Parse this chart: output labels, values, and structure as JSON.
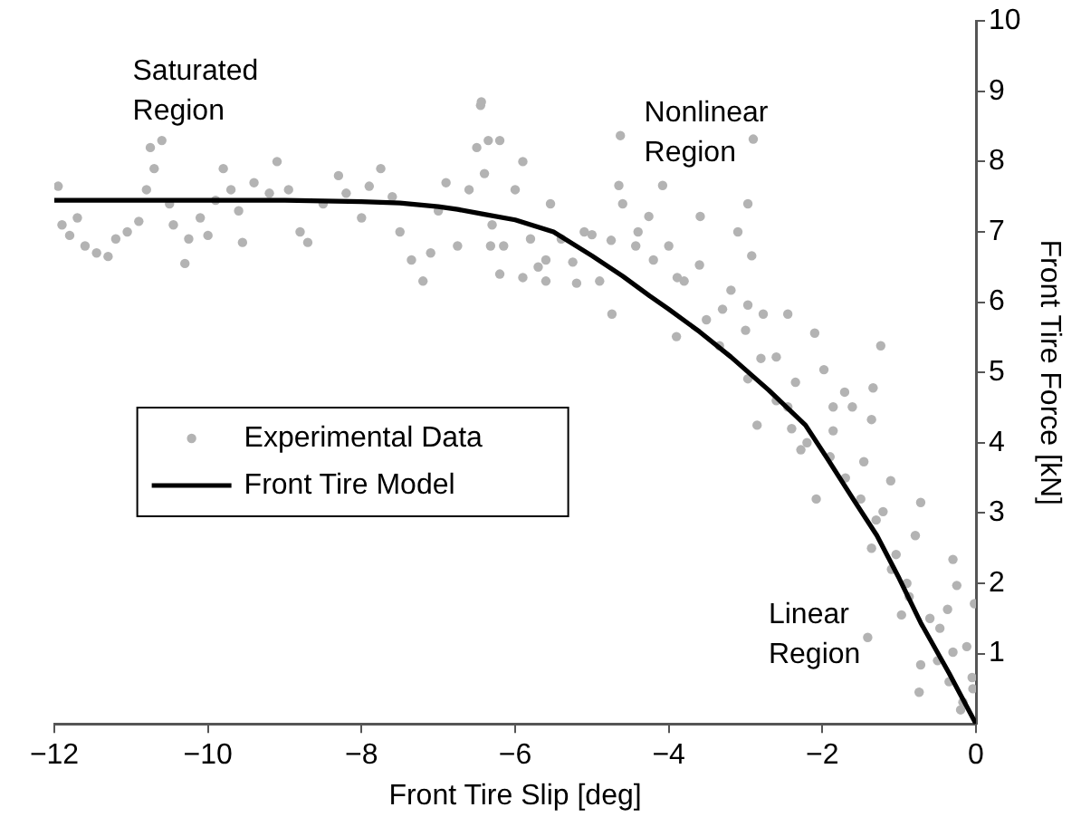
{
  "chart_data": {
    "type": "scatter",
    "xlabel": "Front Tire Slip [deg]",
    "ylabel": "Front Tire Force [kN]",
    "xlim": [
      -12,
      0
    ],
    "xticks": [
      {
        "value": -12,
        "label": "−12"
      },
      {
        "value": -10,
        "label": "−10"
      },
      {
        "value": -8,
        "label": "−8"
      },
      {
        "value": -6,
        "label": "−6"
      },
      {
        "value": -4,
        "label": "−4"
      },
      {
        "value": -2,
        "label": "−2"
      },
      0
    ],
    "ylim": [
      0,
      10
    ],
    "yticks": [
      1,
      2,
      3,
      4,
      5,
      6,
      7,
      8,
      9,
      10
    ],
    "grid": false,
    "legend": "center left",
    "marker": "circle",
    "annotations": [
      "Saturated Region",
      "Nonlinear Region",
      "Linear Region"
    ],
    "series": [
      {
        "name": "Experimental Data",
        "color": "#b3b3b3",
        "x": [
          -11.95,
          -11.9,
          -11.8,
          -11.7,
          -11.6,
          -11.45,
          -11.3,
          -11.2,
          -11.05,
          -10.9,
          -10.8,
          -10.75,
          -10.7,
          -10.6,
          -10.5,
          -10.45,
          -10.3,
          -10.25,
          -10.1,
          -10,
          -9.9,
          -9.8,
          -9.7,
          -9.6,
          -9.55,
          -9.4,
          -9.2,
          -9.1,
          -8.95,
          -8.8,
          -8.7,
          -8.5,
          -8.3,
          -8.2,
          -8,
          -7.9,
          -7.75,
          -7.6,
          -7.5,
          -7.35,
          -7.2,
          -7.1,
          -7,
          -6.9,
          -6.75,
          -6.6,
          -6.5,
          -6.45,
          -6.35,
          -6.3,
          -6.2,
          -6.15,
          -6,
          -5.9,
          -5.8,
          -5.7,
          -5.6,
          -6.44,
          -6.2,
          -6.4,
          -6.32,
          -5.9,
          -5.54,
          -5.6,
          -5.25,
          -5.2,
          -5,
          -4.75,
          -4.74,
          -4.63,
          -4.65,
          -4.43,
          -4.26,
          -4.08,
          -4,
          -3.89,
          -3.9,
          -3.59,
          -3.6,
          -3.51,
          -3.34,
          -3.19,
          -3.1,
          -2.97,
          -2.9,
          -2.92,
          -2.97,
          -2.77,
          -2.6,
          -2.45,
          -2.35,
          -2.1,
          -1.98,
          -1.86,
          -1.71,
          -1.34,
          -1.24,
          -2.97,
          -2.85,
          -2.45,
          -2.28,
          -2.08,
          -1.86,
          -1.61,
          -1.46,
          -1.36,
          -1.21,
          -1.11,
          -1.36,
          -1.04,
          -0.79,
          -0.72,
          -0.87,
          -0.97,
          -1.41,
          -0.72,
          -0.74,
          -0.47,
          -0.3,
          -0.25,
          -0.12,
          -0.05,
          -0.02,
          -0.3,
          -0.17,
          -0.04,
          -0.37,
          -2.6,
          -2.4,
          -2.2,
          -1.9,
          -1.7,
          -1.5,
          -1.3,
          -1.1,
          -0.9,
          -0.6,
          -0.5,
          -0.35,
          -0.2,
          -3.3,
          -3,
          -2.8,
          -3.8,
          -4.2,
          -4.4,
          -4.6,
          -5.1,
          -5.4,
          -4.9
        ],
        "values": [
          7.65,
          7.1,
          6.95,
          7.2,
          6.8,
          6.7,
          6.65,
          6.9,
          7,
          7.15,
          7.6,
          8.2,
          7.9,
          8.3,
          7.4,
          7.1,
          6.55,
          6.9,
          7.2,
          6.95,
          7.45,
          7.9,
          7.6,
          7.3,
          6.85,
          7.7,
          7.55,
          8,
          7.6,
          7,
          6.85,
          7.4,
          7.8,
          7.55,
          7.2,
          7.65,
          7.9,
          7.5,
          7,
          6.6,
          6.3,
          6.7,
          7.3,
          7.7,
          6.8,
          7.6,
          8.2,
          8.8,
          8.3,
          7.1,
          6.4,
          6.8,
          7.6,
          8,
          6.9,
          6.5,
          6.3,
          8.85,
          8.3,
          7.83,
          6.8,
          6.35,
          7.4,
          6.6,
          6.57,
          6.27,
          6.96,
          6.88,
          5.83,
          8.37,
          7.66,
          6.8,
          7.22,
          7.66,
          6.8,
          6.35,
          5.51,
          7.22,
          6.53,
          5.75,
          5.38,
          6.17,
          7,
          7.4,
          8.32,
          6.66,
          5.96,
          5.83,
          5.22,
          5.83,
          4.86,
          5.56,
          5.04,
          4.51,
          4.72,
          4.78,
          5.38,
          4.91,
          4.25,
          4.51,
          3.9,
          3.2,
          4.17,
          4.51,
          3.73,
          4.33,
          3.02,
          3.46,
          2.5,
          2.41,
          2.68,
          3.15,
          1.81,
          1.55,
          1.23,
          0.84,
          0.45,
          1.36,
          2.34,
          1.97,
          1.1,
          0.66,
          1.71,
          1.02,
          0.31,
          0.5,
          1.63,
          4.6,
          4.2,
          4,
          3.8,
          3.5,
          3.2,
          2.9,
          2.2,
          2,
          1.5,
          0.9,
          0.6,
          0.2,
          5.9,
          5.6,
          5.2,
          6.3,
          6.6,
          7,
          7.4,
          7,
          6.9,
          6.3
        ]
      },
      {
        "name": "Front Tire Model",
        "type": "line",
        "color": "#000000",
        "line_style": "solid",
        "marker": "none",
        "x": [
          -12,
          -9,
          -8,
          -7.5,
          -7,
          -6.75,
          -6.4,
          -6,
          -5.5,
          -5,
          -4.6,
          -4.25,
          -4,
          -3.6,
          -3.19,
          -2.7,
          -2.22,
          -1.95,
          -1.6,
          -1.29,
          -1,
          -0.72,
          -0.35,
          0
        ],
        "values": [
          7.45,
          7.45,
          7.43,
          7.41,
          7.36,
          7.32,
          7.25,
          7.17,
          7,
          6.66,
          6.37,
          6.09,
          5.9,
          5.58,
          5.22,
          4.75,
          4.25,
          3.8,
          3.2,
          2.68,
          2.07,
          1.44,
          0.72,
          0
        ]
      }
    ]
  }
}
